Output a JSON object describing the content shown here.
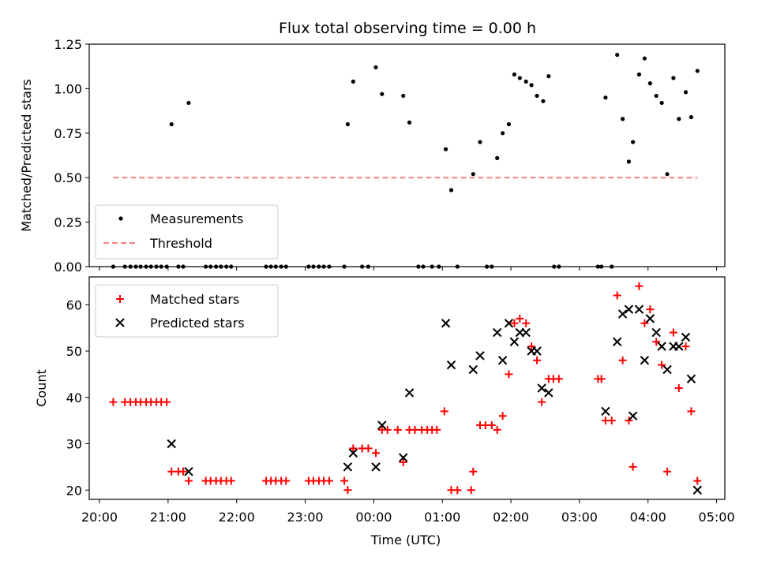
{
  "chart_data": [
    {
      "type": "scatter",
      "title": "Flux total observing time = 0.00 h",
      "xlabel": "",
      "ylabel": "Matched/Predicted stars",
      "ylim": [
        0,
        1.25
      ],
      "yticks": [
        "0.00",
        "0.25",
        "0.50",
        "0.75",
        "1.00",
        "1.25"
      ],
      "ytick_values": [
        0,
        0.25,
        0.5,
        0.75,
        1.0,
        1.25
      ],
      "legend_position": "lower-left",
      "series": [
        {
          "name": "Measurements",
          "color": "#000000",
          "marker": "dot",
          "x": [
            20.2,
            20.37,
            20.45,
            20.53,
            20.6,
            20.68,
            20.75,
            20.83,
            20.9,
            20.98,
            21.05,
            21.15,
            21.22,
            21.3,
            21.55,
            21.62,
            21.7,
            21.77,
            21.85,
            21.92,
            22.43,
            22.5,
            22.57,
            22.65,
            22.72,
            23.05,
            23.12,
            23.2,
            23.27,
            23.35,
            23.57,
            23.62,
            23.7,
            23.83,
            23.92,
            24.03,
            24.12,
            24.43,
            24.52,
            24.65,
            24.72,
            24.85,
            24.95,
            25.05,
            25.13,
            25.22,
            25.45,
            25.55,
            25.65,
            25.72,
            25.8,
            25.88,
            25.97,
            26.05,
            26.13,
            26.22,
            26.3,
            26.38,
            26.47,
            26.55,
            26.63,
            26.7,
            27.27,
            27.32,
            27.38,
            27.47,
            27.55,
            27.63,
            27.72,
            27.78,
            27.87,
            27.95,
            28.03,
            28.12,
            28.2,
            28.28,
            28.37,
            28.45,
            28.55,
            28.63,
            28.72
          ],
          "y": [
            0,
            0,
            0,
            0,
            0,
            0,
            0,
            0,
            0,
            0,
            0.8,
            0,
            0,
            0.92,
            0,
            0,
            0,
            0,
            0,
            0,
            0,
            0,
            0,
            0,
            0,
            0,
            0,
            0,
            0,
            0,
            0,
            0.8,
            1.04,
            0,
            0,
            1.12,
            0.97,
            0.96,
            0.81,
            0,
            0,
            0,
            0,
            0.66,
            0.43,
            0,
            0.52,
            0.7,
            0,
            0,
            0.61,
            0.75,
            0.8,
            1.08,
            1.06,
            1.04,
            1.02,
            0.96,
            0.93,
            1.07,
            0,
            0,
            0,
            0,
            0.95,
            0,
            1.19,
            0.83,
            0.59,
            0.7,
            1.08,
            1.17,
            1.03,
            0.96,
            0.92,
            0.52,
            1.06,
            0.83,
            0.98,
            0.84,
            1.1
          ]
        },
        {
          "name": "Threshold",
          "color": "#ff8080",
          "style": "dashed",
          "x": [
            20.2,
            28.72
          ],
          "y": [
            0.5,
            0.5
          ]
        }
      ]
    },
    {
      "type": "scatter",
      "title": "",
      "xlabel": "Time (UTC)",
      "ylabel": "Count",
      "ylim": [
        18,
        66
      ],
      "yticks": [
        "20",
        "30",
        "40",
        "50",
        "60"
      ],
      "ytick_values": [
        20,
        30,
        40,
        50,
        60
      ],
      "xticks": [
        "20:00",
        "21:00",
        "22:00",
        "23:00",
        "00:00",
        "01:00",
        "02:00",
        "03:00",
        "04:00",
        "05:00"
      ],
      "xtick_values": [
        20,
        21,
        22,
        23,
        24,
        25,
        26,
        27,
        28,
        29
      ],
      "legend_position": "upper-left",
      "series": [
        {
          "name": "Matched stars",
          "color": "#ff0000",
          "marker": "plus",
          "x": [
            20.2,
            20.37,
            20.45,
            20.53,
            20.6,
            20.68,
            20.75,
            20.83,
            20.9,
            20.98,
            21.05,
            21.15,
            21.22,
            21.3,
            21.55,
            21.62,
            21.7,
            21.77,
            21.85,
            21.92,
            22.43,
            22.5,
            22.57,
            22.65,
            22.72,
            23.05,
            23.12,
            23.2,
            23.27,
            23.35,
            23.57,
            23.62,
            23.7,
            23.83,
            23.92,
            24.03,
            24.12,
            24.2,
            24.35,
            24.43,
            24.52,
            24.6,
            24.7,
            24.78,
            24.85,
            24.92,
            25.03,
            25.13,
            25.22,
            25.42,
            25.45,
            25.55,
            25.63,
            25.72,
            25.8,
            25.88,
            25.97,
            26.05,
            26.13,
            26.22,
            26.3,
            26.38,
            26.45,
            26.55,
            26.62,
            26.7,
            27.27,
            27.32,
            27.38,
            27.47,
            27.55,
            27.63,
            27.72,
            27.78,
            27.87,
            27.95,
            28.03,
            28.12,
            28.2,
            28.28,
            28.37,
            28.45,
            28.55,
            28.63,
            28.72
          ],
          "y": [
            39,
            39,
            39,
            39,
            39,
            39,
            39,
            39,
            39,
            39,
            24,
            24,
            24,
            22,
            22,
            22,
            22,
            22,
            22,
            22,
            22,
            22,
            22,
            22,
            22,
            22,
            22,
            22,
            22,
            22,
            22,
            20,
            29,
            29,
            29,
            28,
            33,
            33,
            33,
            26,
            33,
            33,
            33,
            33,
            33,
            33,
            37,
            20,
            20,
            20,
            24,
            34,
            34,
            34,
            33,
            36,
            45,
            56,
            57,
            56,
            51,
            48,
            39,
            44,
            44,
            44,
            44,
            44,
            35,
            35,
            62,
            48,
            35,
            25,
            64,
            56,
            59,
            52,
            47,
            24,
            54,
            42,
            51,
            37,
            22
          ]
        },
        {
          "name": "Predicted stars",
          "color": "#000000",
          "marker": "x",
          "x": [
            21.05,
            21.3,
            23.62,
            23.7,
            24.03,
            24.12,
            24.43,
            24.52,
            25.05,
            25.13,
            25.45,
            25.55,
            25.8,
            25.88,
            25.97,
            26.05,
            26.13,
            26.22,
            26.3,
            26.38,
            26.45,
            26.55,
            27.38,
            27.55,
            27.63,
            27.72,
            27.78,
            27.87,
            27.95,
            28.03,
            28.12,
            28.2,
            28.28,
            28.37,
            28.45,
            28.55,
            28.63,
            28.72
          ],
          "y": [
            30,
            24,
            25,
            28,
            25,
            34,
            27,
            41,
            56,
            47,
            46,
            49,
            54,
            48,
            56,
            52,
            54,
            54,
            50,
            50,
            42,
            41,
            37,
            52,
            58,
            59,
            36,
            59,
            48,
            57,
            54,
            51,
            46,
            51,
            51,
            53,
            44,
            20
          ]
        }
      ]
    }
  ]
}
